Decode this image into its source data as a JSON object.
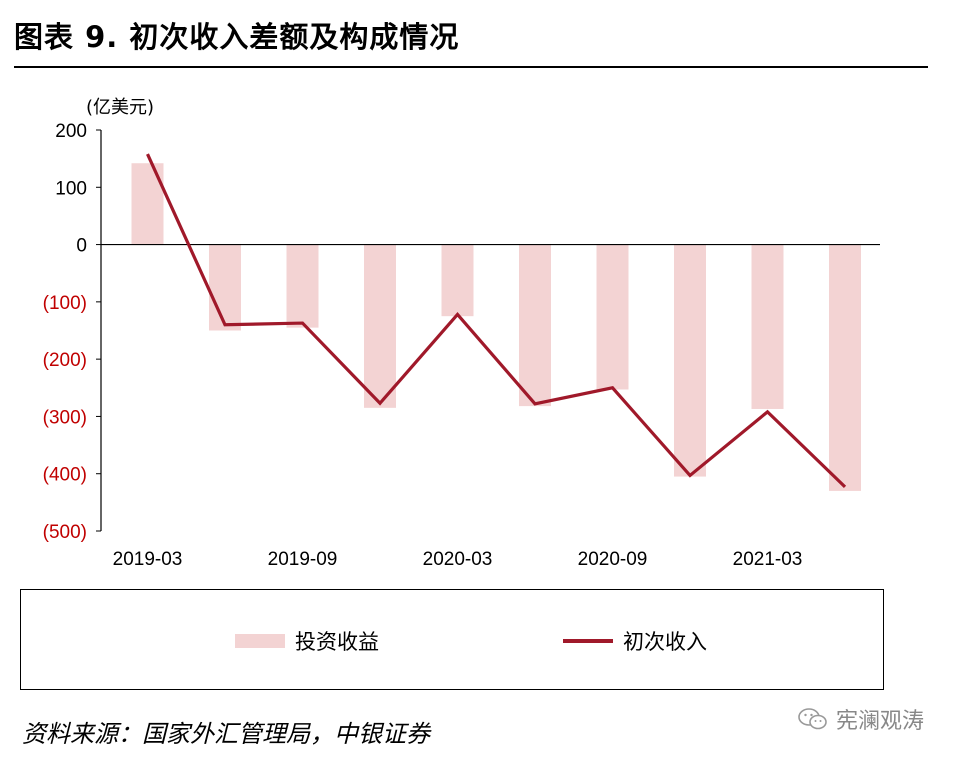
{
  "title": "图表 9. 初次收入差额及构成情况",
  "unit": "(亿美元)",
  "legend": {
    "bar": "投资收益",
    "line": "初次收入"
  },
  "source": "资料来源：国家外汇管理局，中银证券",
  "watermark": "宪澜观涛",
  "colors": {
    "bar": "#f3d3d3",
    "line": "#a0192a",
    "negative_label": "#c00000"
  },
  "chart_data": {
    "type": "bar+line",
    "ylim": [
      -500,
      200
    ],
    "yticks": [
      200,
      100,
      0,
      -100,
      -200,
      -300,
      -400,
      -500
    ],
    "ytick_labels": [
      "200",
      "100",
      "0",
      "(100)",
      "(200)",
      "(300)",
      "(400)",
      "(500)"
    ],
    "x": [
      "2019-03",
      "2019-06",
      "2019-09",
      "2019-12",
      "2020-03",
      "2020-06",
      "2020-09",
      "2020-12",
      "2021-03",
      "2021-06"
    ],
    "xtick_labels": [
      "2019-03",
      "2019-09",
      "2020-03",
      "2020-09",
      "2021-03"
    ],
    "series": [
      {
        "name": "投资收益",
        "type": "bar",
        "values": [
          142,
          -150,
          -145,
          -285,
          -125,
          -282,
          -253,
          -405,
          -287,
          -430
        ]
      },
      {
        "name": "初次收入",
        "type": "line",
        "values": [
          158,
          -140,
          -137,
          -277,
          -122,
          -278,
          -250,
          -403,
          -292,
          -423
        ]
      }
    ]
  }
}
